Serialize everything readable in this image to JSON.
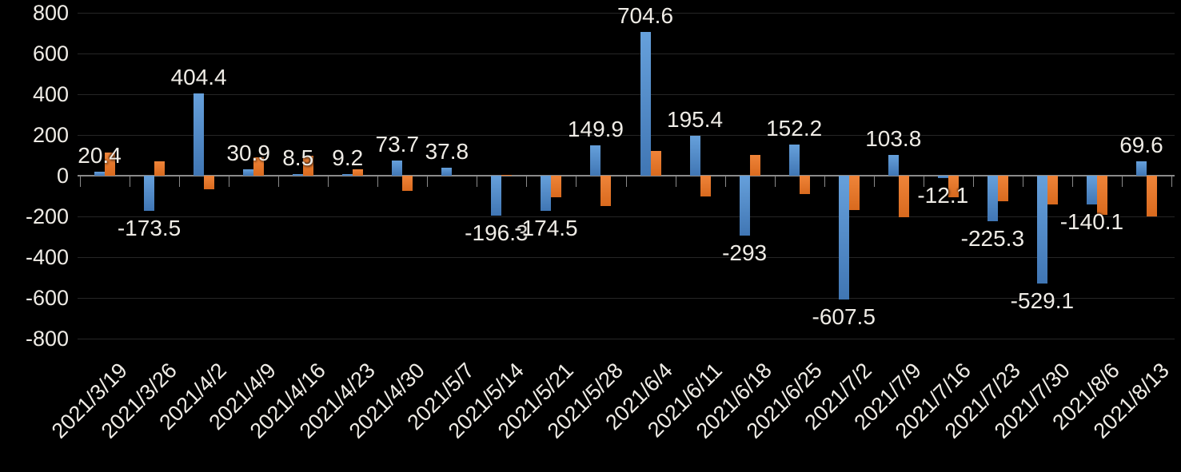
{
  "chart_data": {
    "type": "bar",
    "title": "",
    "xlabel": "",
    "ylabel": "",
    "legend": "none",
    "grid": true,
    "background_color": "#000000",
    "text_color": "#efece6",
    "axis_color": "#8a8a8a",
    "gridline_color": "#262626",
    "y_axis": {
      "min": -800,
      "max": 800,
      "tick_step": 200,
      "ticks": [
        800,
        600,
        400,
        200,
        0,
        -200,
        -400,
        -600,
        -800
      ],
      "tick_labels": [
        "800",
        "600",
        "400",
        "200",
        "0",
        "-200",
        "-400",
        "-600",
        "-800"
      ]
    },
    "categories": [
      "2021/3/19",
      "2021/3/26",
      "2021/4/2",
      "2021/4/9",
      "2021/4/16",
      "2021/4/23",
      "2021/4/30",
      "2021/5/7",
      "2021/5/14",
      "2021/5/21",
      "2021/5/28",
      "2021/6/4",
      "2021/6/11",
      "2021/6/18",
      "2021/6/25",
      "2021/7/2",
      "2021/7/9",
      "2021/7/16",
      "2021/7/23",
      "2021/7/30",
      "2021/8/6",
      "2021/8/13"
    ],
    "series": [
      {
        "name": "blue-series",
        "color_top": "#66a0db",
        "color_bottom": "#4076b4",
        "values": [
          20.4,
          -173.5,
          404.4,
          30.9,
          8.5,
          9.2,
          73.7,
          37.8,
          -196.3,
          -174.5,
          149.9,
          704.6,
          195.4,
          -293,
          152.2,
          -607.5,
          103.8,
          -12.1,
          -225.3,
          -529.1,
          -140.1,
          69.6
        ],
        "data_labels": [
          "20.4",
          "-173.5",
          "404.4",
          "30.9",
          "8.5",
          "9.2",
          "73.7",
          "37.8",
          "-196.3",
          "-174.5",
          "149.9",
          "704.6",
          "195.4",
          "-293",
          "152.2",
          "-607.5",
          "103.8",
          "-12.1",
          "-225.3",
          "-529.1",
          "-140.1",
          "69.6"
        ],
        "labels_visible": true
      },
      {
        "name": "orange-series",
        "color_top": "#ef8439",
        "color_bottom": "#d96a1e",
        "values": [
          115,
          70,
          -68,
          90,
          100,
          33,
          -75,
          0,
          4,
          -107,
          -150,
          120,
          -103,
          103,
          -89,
          -169,
          -203,
          -106,
          -125,
          -140,
          -192,
          -200
        ],
        "values_note": "estimated from pixels; no data labels shown for this series",
        "labels_visible": false
      }
    ]
  }
}
